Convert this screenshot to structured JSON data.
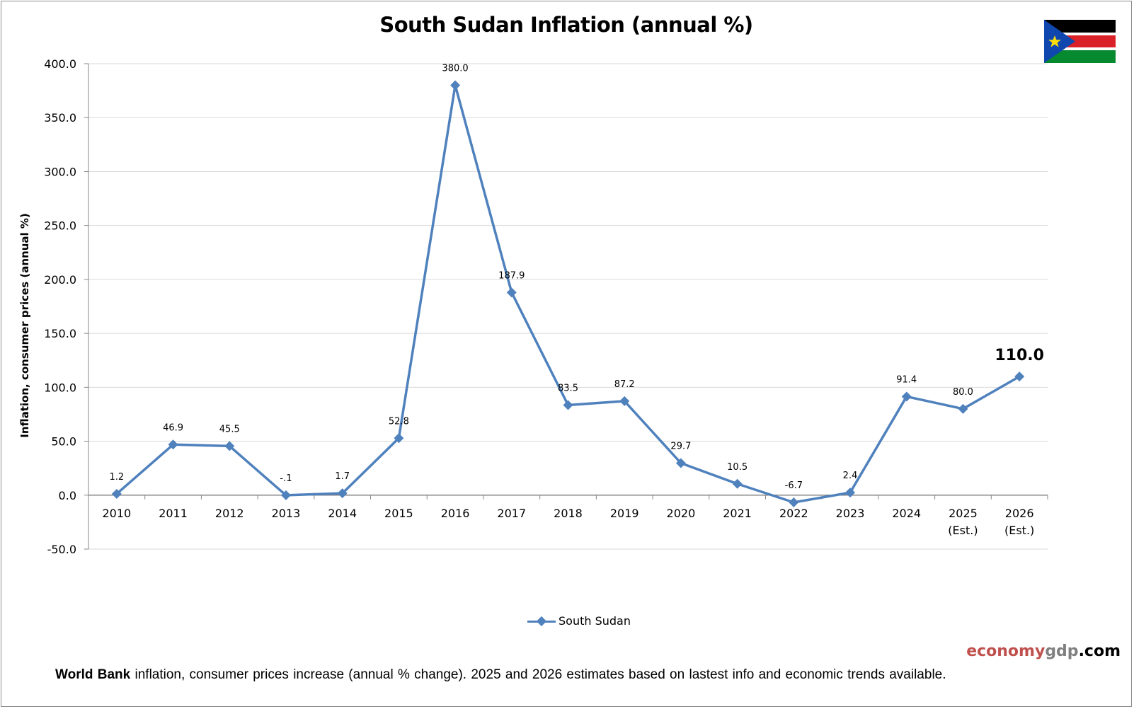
{
  "chart_data": {
    "type": "line",
    "title": "South Sudan Inflation (annual %)",
    "ylabel": "Inflation, consumer prices (annual %)",
    "xlabel": "",
    "ylim": [
      -50,
      400
    ],
    "ytick_step": 50,
    "ytick_labels": [
      "400.0",
      "350.0",
      "300.0",
      "250.0",
      "200.0",
      "150.0",
      "100.0",
      "50.0",
      "0.0",
      "-50.0"
    ],
    "grid": true,
    "legend_position": "bottom",
    "categories": [
      "2010",
      "2011",
      "2012",
      "2013",
      "2014",
      "2015",
      "2016",
      "2017",
      "2018",
      "2019",
      "2020",
      "2021",
      "2022",
      "2023",
      "2024",
      "2025",
      "2026"
    ],
    "category_sublabels": [
      "",
      "",
      "",
      "",
      "",
      "",
      "",
      "",
      "",
      "",
      "",
      "",
      "",
      "",
      "",
      "(Est.)",
      "(Est.)"
    ],
    "series": [
      {
        "name": "South Sudan",
        "color": "#4f81bd",
        "values": [
          1.2,
          46.9,
          45.5,
          -0.1,
          1.7,
          52.8,
          380.0,
          187.9,
          83.5,
          87.2,
          29.7,
          10.5,
          -6.7,
          2.4,
          91.4,
          80.0,
          110.0
        ],
        "labels": [
          "1.2",
          "46.9",
          "45.5",
          "-.1",
          "1.7",
          "52.8",
          "380.0",
          "187.9",
          "83.5",
          "87.2",
          "29.7",
          "10.5",
          "-6.7",
          "2.4",
          "91.4",
          "80.0",
          "110.0"
        ]
      }
    ]
  },
  "flag": {
    "name": "south-sudan-flag",
    "colors": {
      "black": "#000000",
      "white": "#ffffff",
      "red": "#da2128",
      "green": "#078930",
      "blue": "#0f47af",
      "star": "#fcdd09"
    }
  },
  "branding": {
    "part1": "economy",
    "part2": "gdp",
    "part3": ".com"
  },
  "footnote": {
    "bold": "World Bank",
    "text": " inflation, consumer prices increase (annual % change).  2025 and 2026 estimates based on lastest info and economic trends available."
  }
}
